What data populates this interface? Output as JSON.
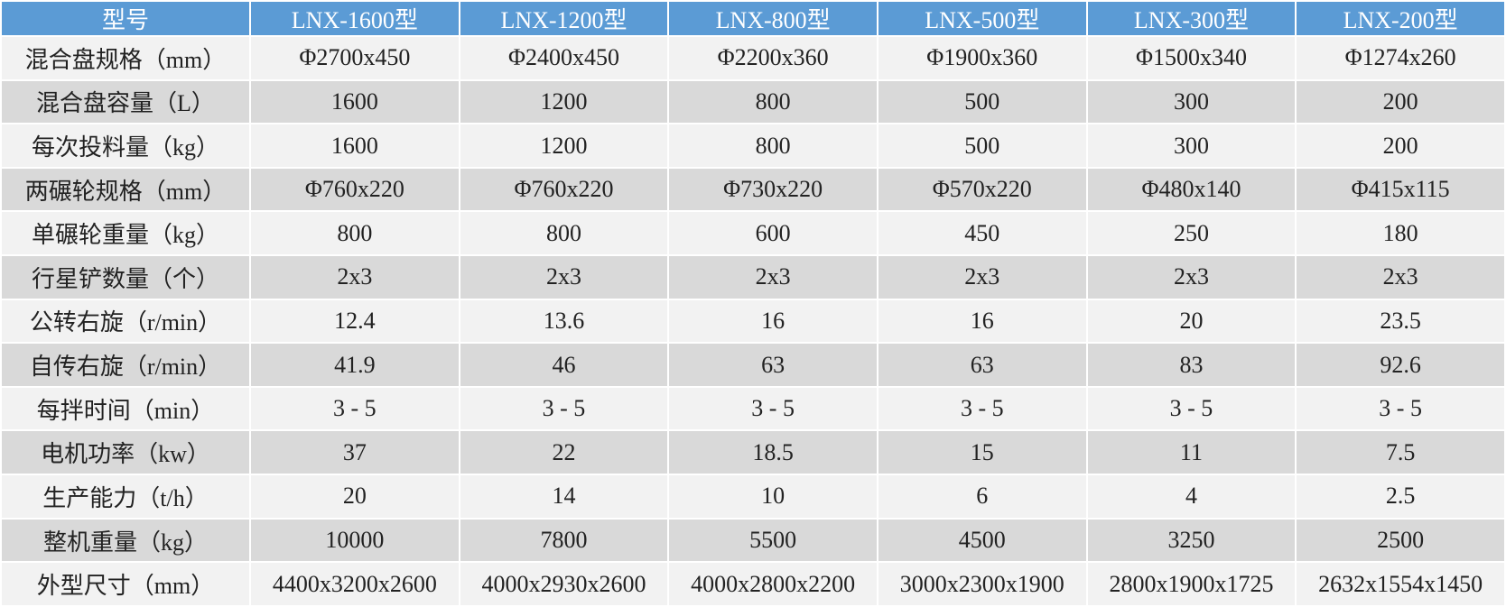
{
  "table": {
    "header": [
      "型号",
      "LNX-1600型",
      "LNX-1200型",
      "LNX-800型",
      "LNX-500型",
      "LNX-300型",
      "LNX-200型"
    ],
    "rows": [
      [
        "混合盘规格（mm）",
        "Φ2700x450",
        "Φ2400x450",
        "Φ2200x360",
        "Φ1900x360",
        "Φ1500x340",
        "Φ1274x260"
      ],
      [
        "混合盘容量（L）",
        "1600",
        "1200",
        "800",
        "500",
        "300",
        "200"
      ],
      [
        "每次投料量（kg）",
        "1600",
        "1200",
        "800",
        "500",
        "300",
        "200"
      ],
      [
        "两碾轮规格（mm）",
        "Φ760x220",
        "Φ760x220",
        "Φ730x220",
        "Φ570x220",
        "Φ480x140",
        "Φ415x115"
      ],
      [
        "单碾轮重量（kg）",
        "800",
        "800",
        "600",
        "450",
        "250",
        "180"
      ],
      [
        "行星铲数量（个）",
        "2x3",
        "2x3",
        "2x3",
        "2x3",
        "2x3",
        "2x3"
      ],
      [
        "公转右旋（r/min）",
        "12.4",
        "13.6",
        "16",
        "16",
        "20",
        "23.5"
      ],
      [
        "自传右旋（r/min）",
        "41.9",
        "46",
        "63",
        "63",
        "83",
        "92.6"
      ],
      [
        "每拌时间（min）",
        "3 - 5",
        "3 - 5",
        "3 - 5",
        "3 - 5",
        "3 - 5",
        "3 - 5"
      ],
      [
        "电机功率（kw）",
        "37",
        "22",
        "18.5",
        "15",
        "11",
        "7.5"
      ],
      [
        "生产能力（t/h）",
        "20",
        "14",
        "10",
        "6",
        "4",
        "2.5"
      ],
      [
        "整机重量（kg）",
        "10000",
        "7800",
        "5500",
        "4500",
        "3250",
        "2500"
      ],
      [
        "外型尺寸（mm）",
        "4400x3200x2600",
        "4000x2930x2600",
        "4000x2800x2200",
        "3000x2300x1900",
        "2800x1900x1725",
        "2632x1554x1450"
      ]
    ]
  }
}
